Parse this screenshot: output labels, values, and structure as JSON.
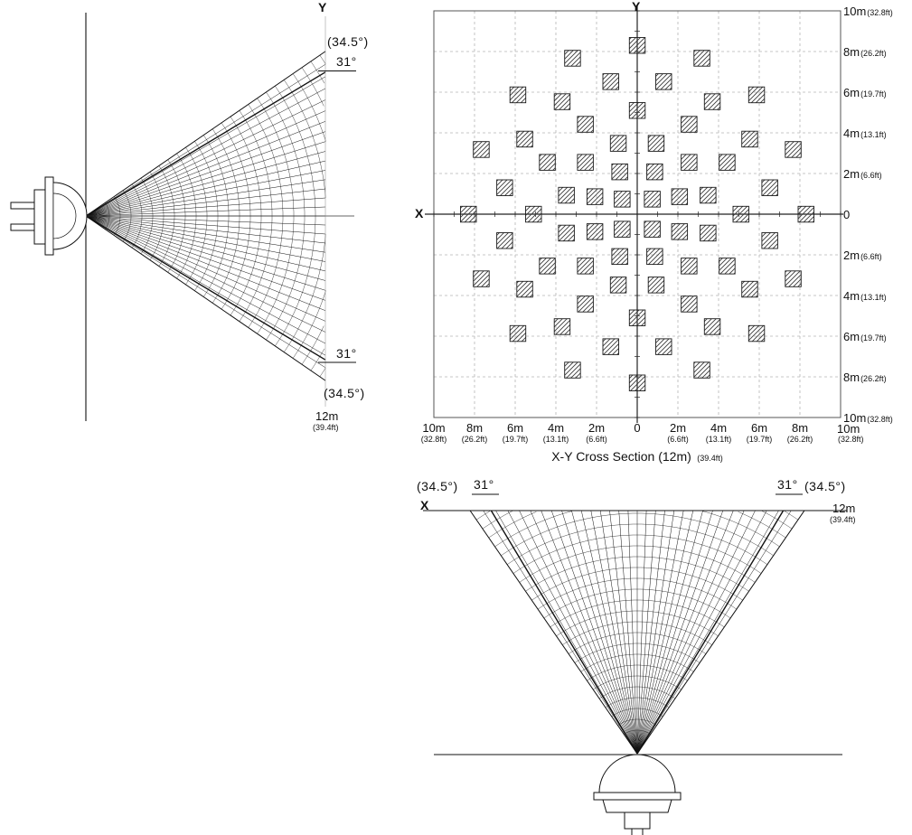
{
  "beam": {
    "outer_angle": 34.5,
    "inner_angle": 31
  },
  "side_view": {
    "axis_label": "Y",
    "labels": {
      "outer_top": "(34.5°)",
      "inner_top": "31°",
      "inner_bottom": "31°",
      "outer_bottom": "(34.5°)",
      "range_m": "12m",
      "range_ft": "(39.4ft)"
    }
  },
  "grid_view": {
    "axis_label_y": "Y",
    "axis_label_x": "X",
    "title": "X-Y Cross Section (12m)",
    "title_ft": "(39.4ft)",
    "right_labels": [
      {
        "m": "10m",
        "ft": "(32.8ft)"
      },
      {
        "m": "8m",
        "ft": "(26.2ft)"
      },
      {
        "m": "6m",
        "ft": "(19.7ft)"
      },
      {
        "m": "4m",
        "ft": "(13.1ft)"
      },
      {
        "m": "2m",
        "ft": "(6.6ft)"
      },
      {
        "m": "0",
        "ft": ""
      },
      {
        "m": "2m",
        "ft": "(6.6ft)"
      },
      {
        "m": "4m",
        "ft": "(13.1ft)"
      },
      {
        "m": "6m",
        "ft": "(19.7ft)"
      },
      {
        "m": "8m",
        "ft": "(26.2ft)"
      },
      {
        "m": "10m",
        "ft": "(32.8ft)"
      }
    ],
    "bottom_labels": [
      {
        "m": "10m",
        "ft": "(32.8ft)"
      },
      {
        "m": "8m",
        "ft": "(26.2ft)"
      },
      {
        "m": "6m",
        "ft": "(19.7ft)"
      },
      {
        "m": "4m",
        "ft": "(13.1ft)"
      },
      {
        "m": "2m",
        "ft": "(6.6ft)"
      },
      {
        "m": "0",
        "ft": ""
      },
      {
        "m": "2m",
        "ft": "(6.6ft)"
      },
      {
        "m": "4m",
        "ft": "(13.1ft)"
      },
      {
        "m": "6m",
        "ft": "(19.7ft)"
      },
      {
        "m": "8m",
        "ft": "(26.2ft)"
      }
    ],
    "corner_label": {
      "m": "10m",
      "ft": "(32.8ft)"
    },
    "zones": [
      [
        0,
        8.3
      ],
      [
        3.18,
        7.67
      ],
      [
        5.87,
        5.87
      ],
      [
        7.67,
        3.18
      ],
      [
        8.3,
        0
      ],
      [
        7.67,
        -3.18
      ],
      [
        5.87,
        -5.87
      ],
      [
        3.18,
        -7.67
      ],
      [
        0,
        -8.3
      ],
      [
        -3.18,
        -7.67
      ],
      [
        -5.87,
        -5.87
      ],
      [
        -7.67,
        -3.18
      ],
      [
        -8.3,
        0
      ],
      [
        -7.67,
        3.18
      ],
      [
        -5.87,
        5.87
      ],
      [
        -3.18,
        7.67
      ],
      [
        6.52,
        1.3
      ],
      [
        5.53,
        3.69
      ],
      [
        3.69,
        5.53
      ],
      [
        1.3,
        6.52
      ],
      [
        -1.3,
        6.52
      ],
      [
        -3.69,
        5.53
      ],
      [
        -5.53,
        3.69
      ],
      [
        -6.52,
        1.3
      ],
      [
        -6.52,
        -1.3
      ],
      [
        -5.53,
        -3.69
      ],
      [
        -3.69,
        -5.53
      ],
      [
        -1.3,
        -6.52
      ],
      [
        1.3,
        -6.52
      ],
      [
        3.69,
        -5.53
      ],
      [
        5.53,
        -3.69
      ],
      [
        6.52,
        -1.3
      ],
      [
        5.1,
        0
      ],
      [
        4.42,
        2.55
      ],
      [
        2.55,
        4.42
      ],
      [
        0,
        5.1
      ],
      [
        -2.55,
        4.42
      ],
      [
        -4.42,
        2.55
      ],
      [
        -5.1,
        0
      ],
      [
        -4.42,
        -2.55
      ],
      [
        -2.55,
        -4.42
      ],
      [
        0,
        -5.1
      ],
      [
        2.55,
        -4.42
      ],
      [
        4.42,
        -2.55
      ],
      [
        3.48,
        0.93
      ],
      [
        2.55,
        2.55
      ],
      [
        0.93,
        3.48
      ],
      [
        -0.93,
        3.48
      ],
      [
        -2.55,
        2.55
      ],
      [
        -3.48,
        0.93
      ],
      [
        -3.48,
        -0.93
      ],
      [
        -2.55,
        -2.55
      ],
      [
        -0.93,
        -3.48
      ],
      [
        0.93,
        -3.48
      ],
      [
        2.55,
        -2.55
      ],
      [
        3.48,
        -0.93
      ],
      [
        2.08,
        0.86
      ],
      [
        0.86,
        2.08
      ],
      [
        -0.86,
        2.08
      ],
      [
        -2.08,
        0.86
      ],
      [
        -2.08,
        -0.86
      ],
      [
        -0.86,
        -2.08
      ],
      [
        0.86,
        -2.08
      ],
      [
        2.08,
        -0.86
      ],
      [
        0.74,
        0.74
      ],
      [
        -0.74,
        0.74
      ],
      [
        -0.74,
        -0.74
      ],
      [
        0.74,
        -0.74
      ]
    ]
  },
  "top_view": {
    "axis_label": "X",
    "labels": {
      "outer_left": "(34.5°)",
      "inner_left": "31°",
      "inner_right": "31°",
      "outer_right": "(34.5°)",
      "range_m": "12m",
      "range_ft": "(39.4ft)"
    }
  }
}
